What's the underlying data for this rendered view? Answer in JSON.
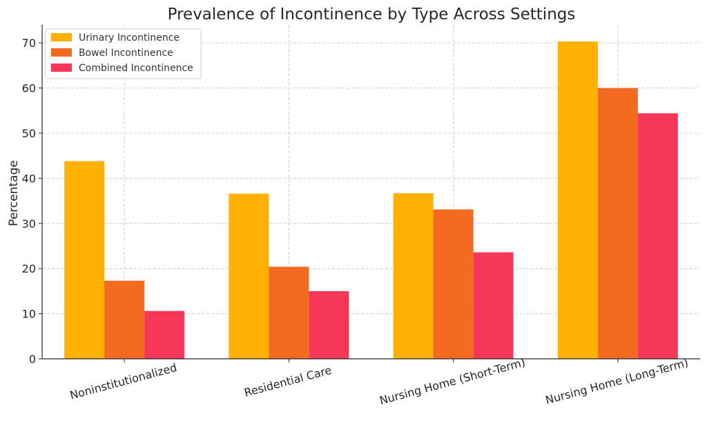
{
  "chart_data": {
    "type": "bar",
    "title": "Prevalence of Incontinence by Type Across Settings",
    "xlabel": "",
    "ylabel": "Percentage",
    "ylim": [
      0,
      74
    ],
    "yticks": [
      0,
      10,
      20,
      30,
      40,
      50,
      60,
      70
    ],
    "grid": true,
    "legend_position": "top-left",
    "categories": [
      "Noninstitutionalized",
      "Residential Care",
      "Nursing Home (Short-Term)",
      "Nursing Home (Long-Term)"
    ],
    "series": [
      {
        "name": "Urinary Incontinence",
        "color": "#FFB000",
        "values": [
          43.8,
          36.6,
          36.7,
          70.3
        ]
      },
      {
        "name": "Bowel Incontinence",
        "color": "#F26B21",
        "values": [
          17.3,
          20.4,
          33.1,
          60.0
        ]
      },
      {
        "name": "Combined Incontinence",
        "color": "#F7375A",
        "values": [
          10.6,
          15.0,
          23.6,
          54.4
        ]
      }
    ]
  }
}
